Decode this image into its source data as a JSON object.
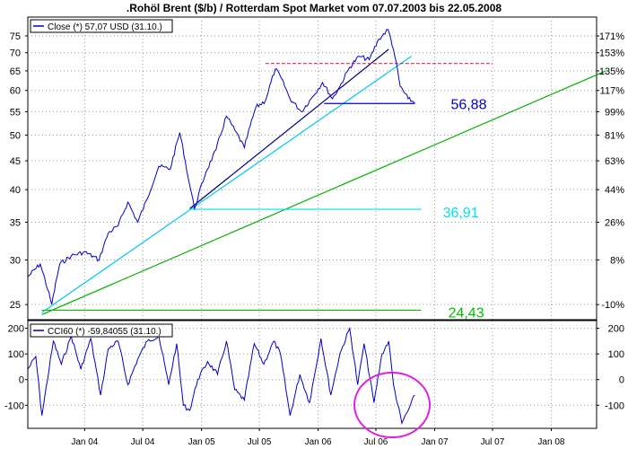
{
  "chart_data": [
    {
      "type": "line",
      "title": ".Rohöl Brent ($/b) / Rotterdam Spot Market vom 07.07.2003 bis 22.05.2008",
      "scale": "log",
      "ylim": [
        23.5,
        81
      ],
      "y_ticks_left": [
        25,
        30,
        35,
        40,
        45,
        50,
        55,
        60,
        65,
        70,
        75
      ],
      "y_ticks_right": [
        "-10%",
        "8%",
        "26%",
        "44%",
        "63%",
        "81%",
        "99%",
        "117%",
        "135%",
        "153%",
        "171%"
      ],
      "x_ticks": [
        "Jan 04",
        "Jul 04",
        "Jan 05",
        "Jul 05",
        "Jan 06",
        "Jul 06",
        "Jan 07",
        "Jul 07",
        "Jan 08"
      ],
      "x_range": [
        "2003-07-07",
        "2008-05-22"
      ],
      "grid": true,
      "legend": "top-left",
      "series": [
        {
          "name": "Close (*) 57,07 USD (31.10.)",
          "color": "#0000cc",
          "x": [
            "2003-07-07",
            "2003-08-15",
            "2003-09-20",
            "2003-10-15",
            "2003-11-20",
            "2004-01-01",
            "2004-02-15",
            "2004-03-15",
            "2004-04-15",
            "2004-05-15",
            "2004-06-15",
            "2004-07-15",
            "2004-08-20",
            "2004-09-25",
            "2004-10-25",
            "2004-11-20",
            "2004-12-10",
            "2005-01-15",
            "2005-02-15",
            "2005-03-20",
            "2005-04-15",
            "2005-05-15",
            "2005-06-20",
            "2005-07-20",
            "2005-08-20",
            "2005-09-05",
            "2005-10-05",
            "2005-11-10",
            "2005-12-10",
            "2006-01-15",
            "2006-02-15",
            "2006-03-10",
            "2006-04-10",
            "2006-05-10",
            "2006-06-10",
            "2006-07-10",
            "2006-08-08",
            "2006-08-25",
            "2006-09-15",
            "2006-10-10",
            "2006-10-31"
          ],
          "values": [
            28.0,
            29.5,
            25.0,
            29.5,
            30.5,
            31.0,
            30.0,
            33.5,
            34.5,
            38.0,
            35.0,
            38.5,
            44.0,
            43.5,
            50.5,
            42.0,
            37.0,
            43.0,
            47.0,
            54.0,
            51.0,
            47.5,
            56.0,
            57.5,
            65.5,
            63.5,
            58.0,
            55.0,
            58.0,
            62.0,
            58.0,
            61.0,
            66.0,
            69.0,
            68.0,
            74.0,
            77.0,
            71.0,
            61.0,
            58.0,
            57.07
          ]
        }
      ],
      "trendlines": [
        {
          "from": [
            "2004-11-25",
            37.0
          ],
          "to": [
            "2006-08-10",
            71.0
          ],
          "color": "#000080"
        },
        {
          "from": [
            "2003-08-20",
            24.2
          ],
          "to": [
            "2006-10-20",
            69.0
          ],
          "color": "#00c8f0"
        },
        {
          "from": [
            "2003-08-20",
            24.0
          ],
          "to": [
            "2008-06-20",
            65.0
          ],
          "color": "#00b000"
        }
      ],
      "levels": [
        {
          "value": 56.88,
          "label": "56,88",
          "from": "2006-01-20",
          "to": "2006-10-31",
          "color": "#0000cc"
        },
        {
          "value": 36.91,
          "label": "36,91",
          "from": "2004-11-25",
          "to": "2006-11-20",
          "color": "#00e0f0"
        },
        {
          "value": 24.43,
          "label": "24,43",
          "from": "2003-08-20",
          "to": "2006-11-20",
          "color": "#00c000"
        },
        {
          "value": 67.0,
          "label": "",
          "from": "2005-07-20",
          "to": "2007-07-01",
          "color": "#cc3355",
          "dashed": true
        }
      ]
    },
    {
      "type": "line",
      "ylim": [
        -190,
        230
      ],
      "y_ticks": [
        200,
        100,
        0,
        -100
      ],
      "x_ticks": [
        "Jan 04",
        "Jul 04",
        "Jan 05",
        "Jul 05",
        "Jan 06",
        "Jul 06",
        "Jan 07",
        "Jul 07",
        "Jan 08"
      ],
      "grid": true,
      "legend": "top-left",
      "series": [
        {
          "name": "CCI60 (*) -59,84055 (31.10.)",
          "color": "#0000cc",
          "x": [
            "2003-07-07",
            "2003-08-01",
            "2003-08-20",
            "2003-09-25",
            "2003-10-20",
            "2003-11-20",
            "2003-12-20",
            "2004-01-20",
            "2004-02-20",
            "2004-03-15",
            "2004-04-15",
            "2004-05-15",
            "2004-06-15",
            "2004-07-15",
            "2004-08-20",
            "2004-09-20",
            "2004-10-15",
            "2004-11-05",
            "2004-11-25",
            "2004-12-20",
            "2005-01-20",
            "2005-02-20",
            "2005-03-20",
            "2005-04-15",
            "2005-05-15",
            "2005-06-15",
            "2005-07-15",
            "2005-08-15",
            "2005-09-05",
            "2005-10-05",
            "2005-11-05",
            "2005-12-05",
            "2006-01-10",
            "2006-02-10",
            "2006-03-10",
            "2006-04-10",
            "2006-05-05",
            "2006-05-25",
            "2006-06-25",
            "2006-07-20",
            "2006-08-10",
            "2006-08-25",
            "2006-09-20",
            "2006-10-10",
            "2006-10-31"
          ],
          "values": [
            40,
            90,
            -140,
            150,
            60,
            170,
            40,
            160,
            -60,
            120,
            150,
            -20,
            80,
            150,
            170,
            -20,
            140,
            -100,
            -120,
            0,
            70,
            20,
            150,
            -40,
            -80,
            140,
            60,
            150,
            100,
            -140,
            20,
            -90,
            160,
            -60,
            100,
            200,
            -20,
            140,
            -90,
            100,
            150,
            -20,
            -170,
            -120,
            -60
          ]
        }
      ]
    }
  ]
}
